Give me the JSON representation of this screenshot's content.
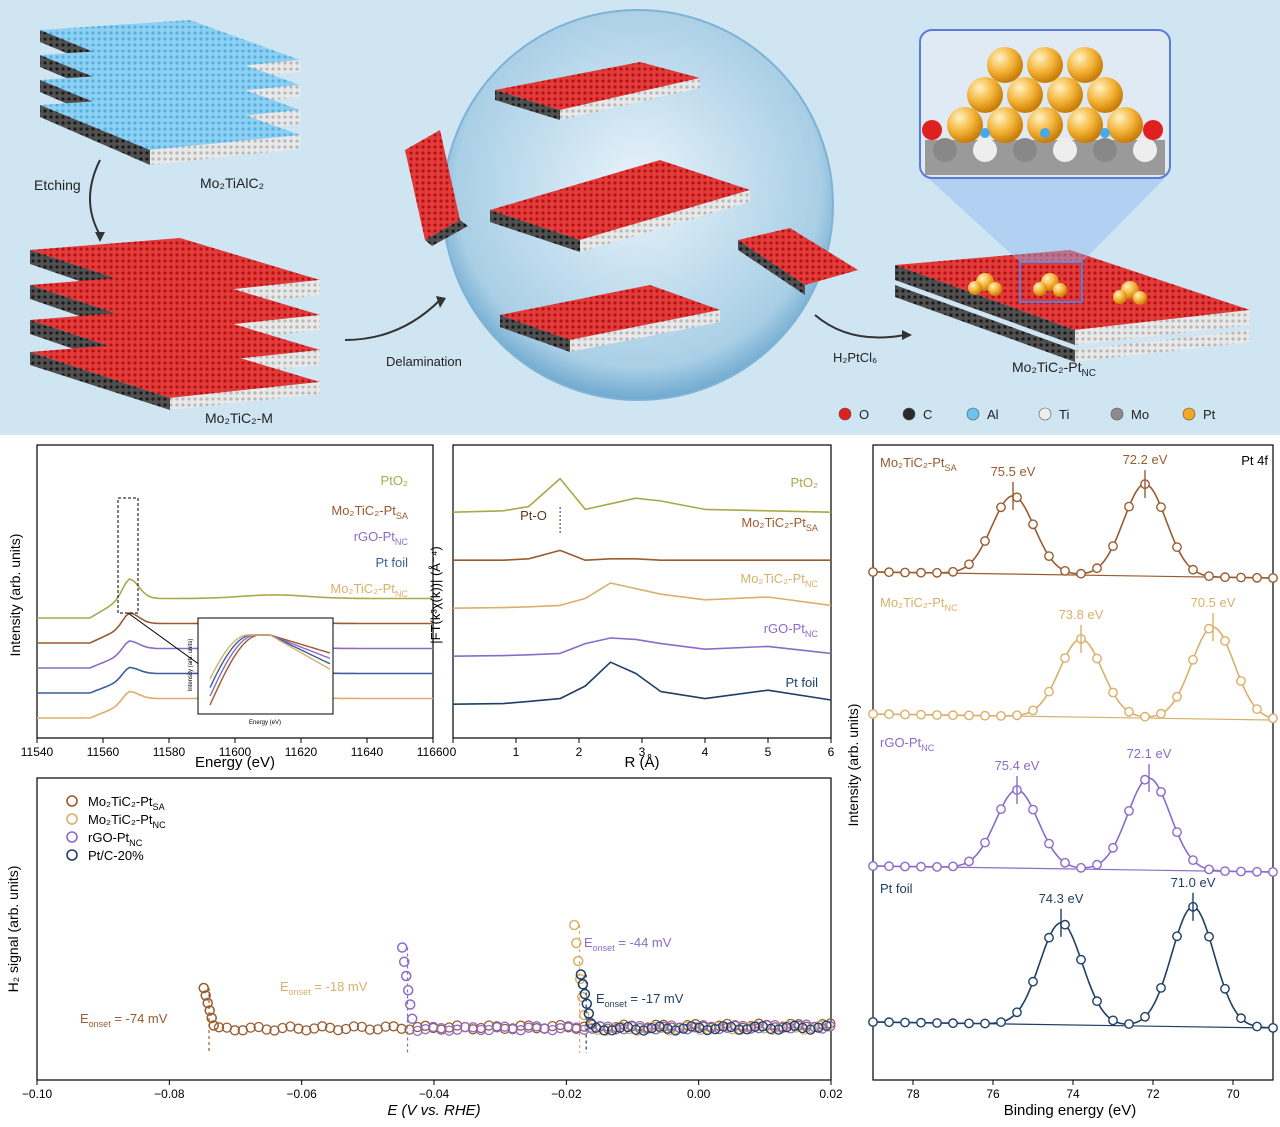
{
  "schematic": {
    "label_etching": "Etching",
    "label_mo2tialc2": "Mo₂TiAlC₂",
    "label_mo2tic2_m": "Mo₂TiC₂-M",
    "label_delamination": "Delamination",
    "label_h2ptcl6": "H₂PtCl₆",
    "label_product": "Mo₂TiC₂-Pt",
    "label_product_sub": "NC",
    "legend": [
      {
        "label": "O",
        "color": "#e02020"
      },
      {
        "label": "C",
        "color": "#2a2a2a"
      },
      {
        "label": "Al",
        "color": "#6cc3ee"
      },
      {
        "label": "Ti",
        "color": "#eeeeee"
      },
      {
        "label": "Mo",
        "color": "#8c8c8c"
      },
      {
        "label": "Pt",
        "color": "#f5a623"
      }
    ]
  },
  "chart_data": [
    {
      "type": "line",
      "panel": "xanes",
      "xlabel": "Energy (eV)",
      "ylabel": "Intensity (arb. units)",
      "xlim": [
        11540,
        11660
      ],
      "xticks": [
        11540,
        11560,
        11580,
        11600,
        11620,
        11640,
        11660
      ],
      "edge_energy": 11568,
      "series": [
        {
          "name": "PtO₂",
          "color": "#a9a94a",
          "offset": 4,
          "white_line_height": 1.3,
          "x": [
            11540,
            11560,
            11568,
            11575,
            11590,
            11615,
            11640,
            11660
          ],
          "y": [
            0.0,
            0.3,
            1.3,
            0.55,
            0.6,
            0.72,
            0.62,
            0.6
          ]
        },
        {
          "name": "Mo₂TiC₂-Pt_SA",
          "color": "#9a5b2f",
          "offset": 3,
          "white_line_height": 1.0,
          "x": [
            11540,
            11560,
            11568,
            11575,
            11590,
            11615,
            11640,
            11660
          ],
          "y": [
            0.0,
            0.3,
            1.0,
            0.75,
            0.7,
            0.72,
            0.7,
            0.7
          ]
        },
        {
          "name": "rGO-Pt_NC",
          "color": "#8a6bc9",
          "offset": 2,
          "white_line_height": 0.9,
          "x": [
            11540,
            11560,
            11568,
            11575,
            11590,
            11615,
            11640,
            11660
          ],
          "y": [
            0.0,
            0.3,
            0.9,
            0.75,
            0.72,
            0.72,
            0.72,
            0.72
          ]
        },
        {
          "name": "Pt foil",
          "color": "#3b5f9c",
          "offset": 1,
          "white_line_height": 0.85,
          "x": [
            11540,
            11560,
            11568,
            11575,
            11590,
            11615,
            11640,
            11660
          ],
          "y": [
            0.0,
            0.3,
            0.85,
            0.75,
            0.72,
            0.72,
            0.72,
            0.72
          ]
        },
        {
          "name": "Mo₂TiC₂-Pt_NC",
          "color": "#d9b06a",
          "offset": 0,
          "white_line_height": 0.88,
          "x": [
            11540,
            11560,
            11568,
            11575,
            11590,
            11615,
            11640,
            11660
          ],
          "y": [
            0.0,
            0.3,
            0.88,
            0.75,
            0.72,
            0.72,
            0.72,
            0.72
          ]
        }
      ],
      "inset": {
        "xlabel": "Energy (eV)",
        "ylabel": "Intensity (arb. units)"
      }
    },
    {
      "type": "line",
      "panel": "exafs",
      "xlabel": "R (Å)",
      "ylabel": "|FT(k³χ(k))| (Å⁻⁴)",
      "xlim": [
        0,
        6
      ],
      "xticks": [
        0,
        1,
        2,
        3,
        4,
        5,
        6
      ],
      "annotation": "Pt-O",
      "annotation_x": 1.7,
      "series": [
        {
          "name": "PtO₂",
          "color": "#a9a94a",
          "offset": 4,
          "x": [
            0,
            0.8,
            1.2,
            1.7,
            2.1,
            2.5,
            2.9,
            3.3,
            4,
            5,
            6
          ],
          "y": [
            0.1,
            0.15,
            0.3,
            1.3,
            0.2,
            0.4,
            0.6,
            0.5,
            0.2,
            0.15,
            0.1
          ]
        },
        {
          "name": "Mo₂TiC₂-Pt_SA",
          "color": "#9a5b2f",
          "offset": 3,
          "x": [
            0,
            0.8,
            1.2,
            1.7,
            2.1,
            2.5,
            2.9,
            3.3,
            4,
            5,
            6
          ],
          "y": [
            0.1,
            0.1,
            0.15,
            0.45,
            0.1,
            0.15,
            0.15,
            0.1,
            0.1,
            0.1,
            0.1
          ]
        },
        {
          "name": "Mo₂TiC₂-Pt_NC",
          "color": "#d9b06a",
          "offset": 2,
          "x": [
            0,
            0.8,
            1.2,
            1.7,
            2.1,
            2.5,
            2.9,
            3.3,
            4,
            5,
            6
          ],
          "y": [
            0.1,
            0.12,
            0.15,
            0.2,
            0.45,
            1.0,
            0.8,
            0.6,
            0.4,
            0.5,
            0.2
          ]
        },
        {
          "name": "rGO-Pt_NC",
          "color": "#8a6bc9",
          "offset": 1,
          "x": [
            0,
            0.8,
            1.2,
            1.7,
            2.1,
            2.5,
            2.9,
            3.3,
            4,
            5,
            6
          ],
          "y": [
            0.1,
            0.12,
            0.15,
            0.2,
            0.55,
            0.75,
            0.7,
            0.55,
            0.35,
            0.45,
            0.2
          ]
        },
        {
          "name": "Pt foil",
          "color": "#1e3f66",
          "offset": 0,
          "x": [
            0,
            0.8,
            1.2,
            1.7,
            2.1,
            2.5,
            2.9,
            3.3,
            4,
            5,
            6
          ],
          "y": [
            0.1,
            0.12,
            0.2,
            0.3,
            0.75,
            1.6,
            1.2,
            0.55,
            0.3,
            0.6,
            0.25
          ]
        }
      ]
    },
    {
      "type": "line",
      "panel": "xps",
      "title": "Pt 4f",
      "xlabel": "Binding energy (eV)",
      "ylabel": "Intensity (arb. units)",
      "xlim": [
        79,
        69
      ],
      "xticks": [
        78,
        76,
        74,
        72,
        70
      ],
      "series": [
        {
          "name": "Mo₂TiC₂-Pt_SA",
          "color": "#9a5b2f",
          "peaks_ev": [
            75.5,
            72.2
          ],
          "peak_labels": [
            "75.5 eV",
            "72.2 eV"
          ]
        },
        {
          "name": "Mo₂TiC₂-Pt_NC",
          "color": "#d9b06a",
          "peaks_ev": [
            73.8,
            70.5
          ],
          "peak_labels": [
            "73.8 eV",
            "70.5 eV"
          ]
        },
        {
          "name": "rGO-Pt_NC",
          "color": "#8a6bc9",
          "peaks_ev": [
            75.4,
            72.1
          ],
          "peak_labels": [
            "75.4 eV",
            "72.1 eV"
          ]
        },
        {
          "name": "Pt foil",
          "color": "#1e3f66",
          "peaks_ev": [
            74.3,
            71.0
          ],
          "peak_labels": [
            "74.3 eV",
            "71.0 eV"
          ]
        }
      ]
    },
    {
      "type": "scatter",
      "panel": "dems",
      "xlabel": "E (V vs. RHE)",
      "ylabel": "H₂ signal (arb. units)",
      "xlim": [
        -0.1,
        0.02
      ],
      "xticks": [
        -0.1,
        -0.08,
        -0.06,
        -0.04,
        -0.02,
        0.0,
        0.02
      ],
      "series": [
        {
          "name": "Mo₂TiC₂-Pt_SA",
          "color": "#9a5b2f",
          "onset_v": -0.074,
          "onset_label": "E_onset = -74 mV",
          "spike_height": 0.5
        },
        {
          "name": "Mo₂TiC₂-Pt_NC",
          "color": "#d9b06a",
          "onset_v": -0.018,
          "onset_label": "E_onset = -18 mV",
          "spike_height": 1.2
        },
        {
          "name": "rGO-Pt_NC",
          "color": "#8a6bc9",
          "onset_v": -0.044,
          "onset_label": "E_onset = -44 mV",
          "spike_height": 0.95
        },
        {
          "name": "Pt/C-20%",
          "color": "#1e3f66",
          "onset_v": -0.017,
          "onset_label": "E_onset = -17 mV",
          "spike_height": 0.65
        }
      ]
    }
  ]
}
